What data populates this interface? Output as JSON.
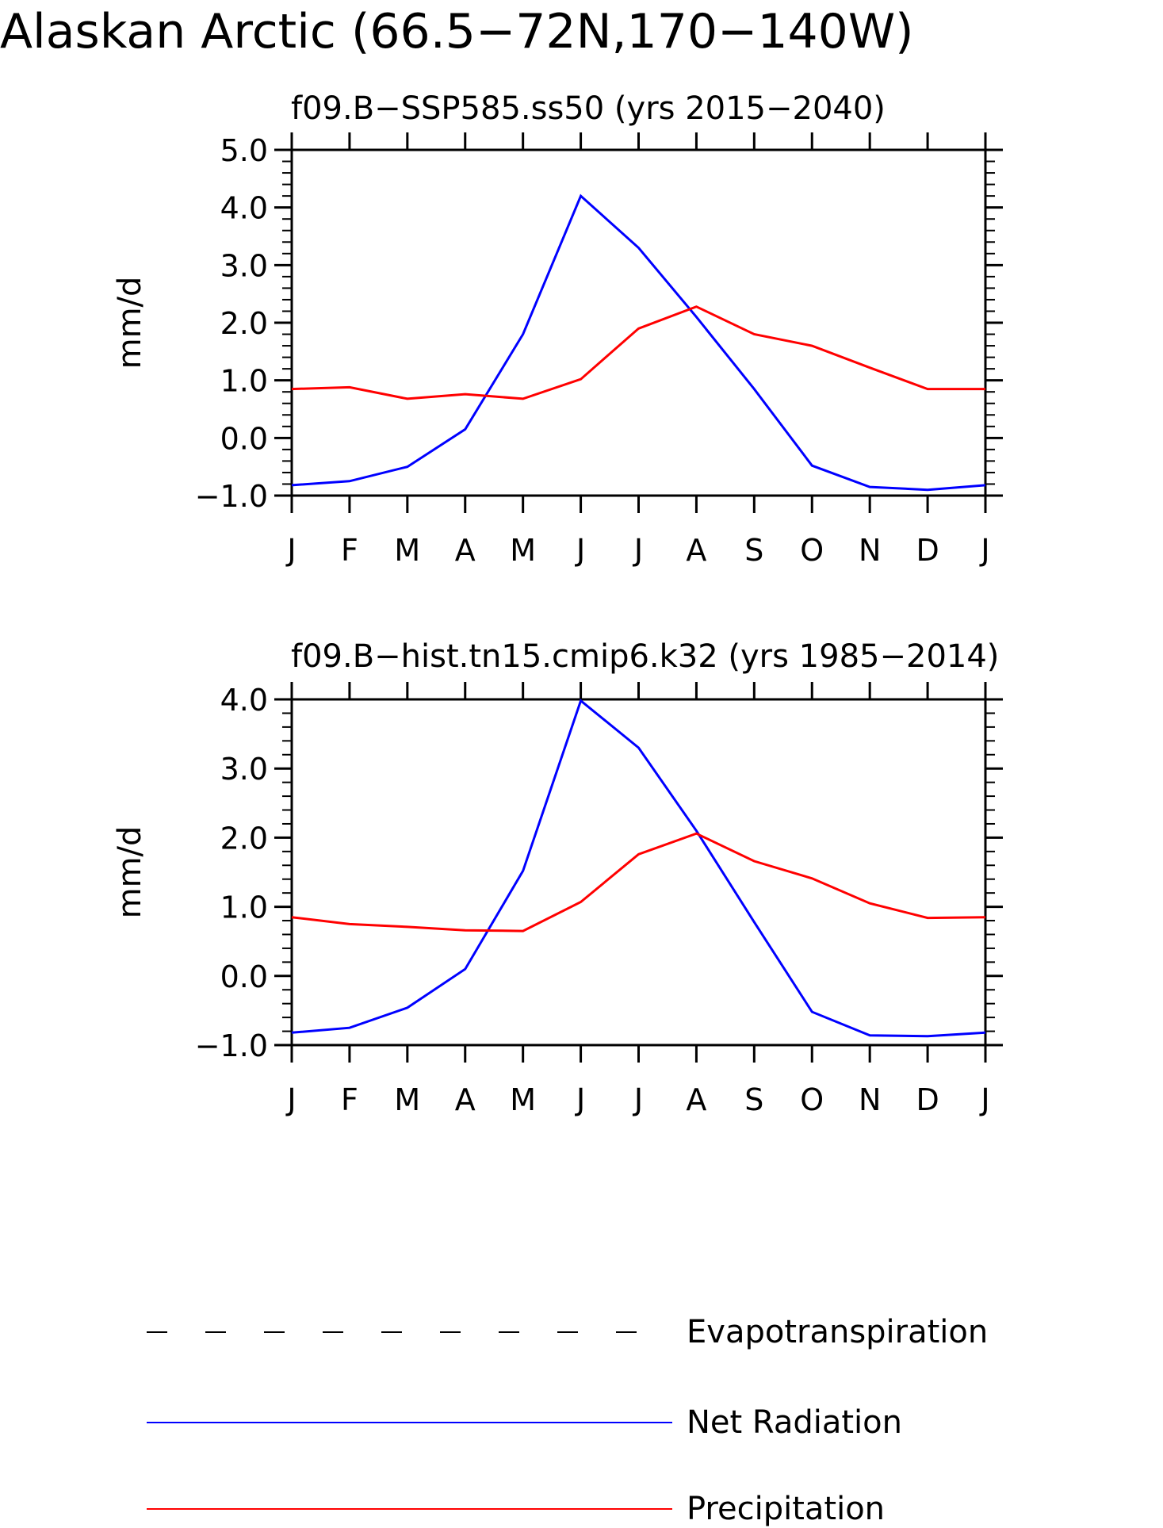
{
  "figure_title": "Alaskan Arctic (66.5−72N,170−140W)",
  "colors": {
    "net_radiation": "#0000ff",
    "precipitation": "#ff0000",
    "evapotranspiration": "#000000",
    "axes": "#000000"
  },
  "legend": {
    "items": [
      {
        "label": "Evapotranspiration",
        "style": "dashed",
        "color": "#000000"
      },
      {
        "label": "Net Radiation",
        "style": "solid",
        "color": "#0000ff"
      },
      {
        "label": "Precipitation",
        "style": "solid",
        "color": "#ff0000"
      }
    ]
  },
  "chart_data": [
    {
      "type": "line",
      "title": "f09.B−SSP585.ss50 (yrs 2015−2040)",
      "xlabel": "",
      "ylabel": "mm/d",
      "categories": [
        "J",
        "F",
        "M",
        "A",
        "M",
        "J",
        "J",
        "A",
        "S",
        "O",
        "N",
        "D",
        "J"
      ],
      "ylim": [
        -1.0,
        5.0
      ],
      "yticks": [
        "−1.0",
        "0.0",
        "1.0",
        "2.0",
        "3.0",
        "4.0",
        "5.0"
      ],
      "ytick_values": [
        -1.0,
        0.0,
        1.0,
        2.0,
        3.0,
        4.0,
        5.0
      ],
      "grid": false,
      "legend_position": "bottom",
      "series": [
        {
          "name": "Net Radiation",
          "color": "#0000ff",
          "values": [
            -0.82,
            -0.75,
            -0.5,
            0.15,
            1.8,
            4.2,
            3.3,
            2.1,
            0.85,
            -0.48,
            -0.85,
            -0.9,
            -0.82
          ]
        },
        {
          "name": "Precipitation",
          "color": "#ff0000",
          "values": [
            0.85,
            0.88,
            0.68,
            0.76,
            0.68,
            1.02,
            1.9,
            2.28,
            1.8,
            1.6,
            1.22,
            0.85,
            0.85
          ]
        }
      ]
    },
    {
      "type": "line",
      "title": "f09.B−hist.tn15.cmip6.k32 (yrs 1985−2014)",
      "xlabel": "",
      "ylabel": "mm/d",
      "categories": [
        "J",
        "F",
        "M",
        "A",
        "M",
        "J",
        "J",
        "A",
        "S",
        "O",
        "N",
        "D",
        "J"
      ],
      "ylim": [
        -1.0,
        4.0
      ],
      "yticks": [
        "−1.0",
        "0.0",
        "1.0",
        "2.0",
        "3.0",
        "4.0"
      ],
      "ytick_values": [
        -1.0,
        0.0,
        1.0,
        2.0,
        3.0,
        4.0
      ],
      "grid": false,
      "legend_position": "bottom",
      "series": [
        {
          "name": "Net Radiation",
          "color": "#0000ff",
          "values": [
            -0.82,
            -0.75,
            -0.46,
            0.1,
            1.52,
            3.98,
            3.3,
            2.1,
            0.78,
            -0.52,
            -0.86,
            -0.87,
            -0.82
          ]
        },
        {
          "name": "Precipitation",
          "color": "#ff0000",
          "values": [
            0.85,
            0.75,
            0.71,
            0.66,
            0.65,
            1.07,
            1.76,
            2.06,
            1.66,
            1.41,
            1.05,
            0.84,
            0.85
          ]
        }
      ]
    }
  ]
}
